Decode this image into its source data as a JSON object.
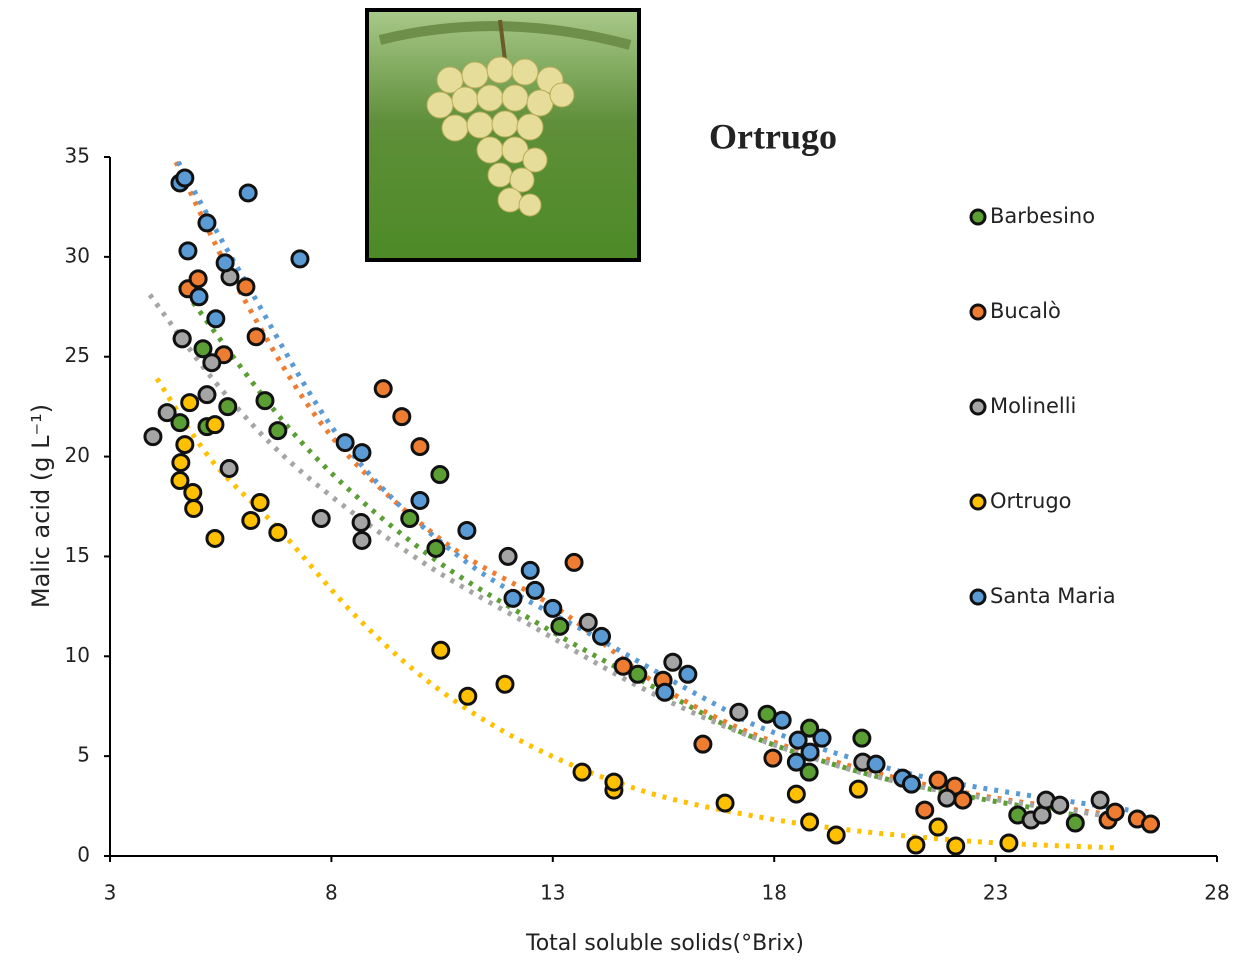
{
  "chart_data": {
    "type": "scatter",
    "title": "Ortrugo",
    "x_label": "Total soluble solids(°Brix)",
    "y_label": "Malic acid (g L⁻¹)",
    "xlim": [
      3,
      28
    ],
    "xticks": [
      3,
      8,
      13,
      18,
      23,
      28
    ],
    "ylim": [
      0,
      35
    ],
    "yticks": [
      0,
      5,
      10,
      15,
      20,
      25,
      30,
      35
    ],
    "series": [
      {
        "name": "Barbesino",
        "color": "#5a9e34",
        "x": [
          4.63,
          4.58,
          5.1,
          5.19,
          5.66,
          6.5,
          6.79,
          9.77,
          10.45,
          10.36,
          13.16,
          14.92,
          17.84,
          18.8,
          18.79,
          19.98,
          23.5,
          24.8
        ],
        "values": [
          25.9,
          21.7,
          25.4,
          21.5,
          22.5,
          22.8,
          21.3,
          16.9,
          19.1,
          15.4,
          11.5,
          9.1,
          7.1,
          6.4,
          4.2,
          5.9,
          2.05,
          1.65
        ],
        "trendline": {
          "x": [
            4.58,
            7.29,
            10,
            12.7,
            15.5,
            17.7,
            21,
            24.8
          ],
          "values": [
            28.6,
            20.8,
            15.4,
            11.6,
            8.2,
            5.8,
            3.6,
            2.05
          ]
        }
      },
      {
        "name": "Bucalò",
        "color": "#ee7d31",
        "x": [
          4.76,
          4.99,
          5.57,
          6.07,
          6.3,
          9.17,
          9.59,
          10,
          13.48,
          14.59,
          15.49,
          16.39,
          17.97,
          21.7,
          21.4,
          22.08,
          22.26,
          25.54,
          25.7,
          26.2,
          26.5
        ],
        "values": [
          28.4,
          28.9,
          25.1,
          28.5,
          26,
          23.4,
          22,
          20.5,
          14.7,
          9.5,
          8.8,
          5.6,
          4.9,
          3.8,
          2.3,
          3.5,
          2.8,
          1.8,
          2.2,
          1.85,
          1.6
        ],
        "trendline": {
          "x": [
            4.49,
            6,
            7.97,
            10.5,
            13.16,
            15.5,
            18.13,
            22,
            26.5
          ],
          "values": [
            34.75,
            28,
            21.1,
            15.8,
            12.3,
            8.4,
            5.6,
            3.3,
            1.8
          ]
        }
      },
      {
        "name": "Molinelli",
        "color": "#a5a5a5",
        "x": [
          3.97,
          4.29,
          4.63,
          5.19,
          5.3,
          5.69,
          5.71,
          7.77,
          8.67,
          8.69,
          11.99,
          13.8,
          15.71,
          17.2,
          20,
          21.9,
          23.8,
          24.05,
          24.14,
          24.45,
          25.36
        ],
        "values": [
          21,
          22.2,
          25.9,
          23.1,
          24.7,
          19.4,
          29,
          16.9,
          16.7,
          15.8,
          15,
          11.7,
          9.7,
          7.2,
          4.7,
          2.9,
          1.8,
          2.05,
          2.8,
          2.55,
          2.8
        ],
        "trendline": {
          "x": [
            3.9,
            5.5,
            7.29,
            10,
            12.7,
            15.2,
            17.7,
            21,
            25.36
          ],
          "values": [
            28.1,
            23.4,
            19.3,
            14.8,
            11.3,
            8.2,
            5.8,
            3.6,
            2.05
          ]
        }
      },
      {
        "name": "Ortrugo",
        "color": "#ffc000",
        "x": [
          4.58,
          4.6,
          4.69,
          4.8,
          4.87,
          4.89,
          5.37,
          5.37,
          6.18,
          6.39,
          6.79,
          10.47,
          11.08,
          11.92,
          13.66,
          14.38,
          14.38,
          16.89,
          18.5,
          18.8,
          19.4,
          19.9,
          21.2,
          21.7,
          22.1,
          23.3
        ],
        "values": [
          18.8,
          19.7,
          20.6,
          22.7,
          18.2,
          17.4,
          15.9,
          21.6,
          16.8,
          17.7,
          16.2,
          10.3,
          8,
          8.6,
          4.2,
          3.3,
          3.7,
          2.65,
          3.1,
          1.7,
          1.05,
          3.35,
          0.55,
          1.45,
          0.5,
          0.65
        ],
        "trendline": {
          "x": [
            4.06,
            5.3,
            6.84,
            8.6,
            10.45,
            12.6,
            14.97,
            17.3,
            19.7,
            22.7,
            25.8
          ],
          "values": [
            23.9,
            19.8,
            16.3,
            11.9,
            8.3,
            5.4,
            3.3,
            2.1,
            1.3,
            0.7,
            0.4
          ]
        }
      },
      {
        "name": "Santa Maria",
        "color": "#5b9bd5",
        "x": [
          4.58,
          4.69,
          6.12,
          4.76,
          7.29,
          5.19,
          5.01,
          5.6,
          5.39,
          8.31,
          8.69,
          10,
          11.06,
          12.49,
          12.6,
          12.1,
          13,
          14.1,
          15.53,
          16.05,
          18.18,
          18.54,
          19.08,
          18.81,
          18.5,
          20.3,
          20.9,
          21.1
        ],
        "values": [
          33.7,
          33.95,
          33.2,
          30.3,
          29.9,
          31.7,
          28,
          29.7,
          26.9,
          20.7,
          20.2,
          17.8,
          16.3,
          14.3,
          13.3,
          12.9,
          12.4,
          11,
          8.2,
          9.1,
          6.8,
          5.8,
          5.9,
          5.2,
          4.7,
          4.6,
          3.9,
          3.6
        ],
        "trendline": {
          "x": [
            4.54,
            6,
            8.3,
            11,
            14.1,
            16.5,
            18.1,
            21.5,
            26
          ],
          "values": [
            34.75,
            29,
            20.6,
            14.8,
            10.8,
            7.8,
            6.1,
            3.9,
            2.3
          ]
        }
      }
    ]
  }
}
